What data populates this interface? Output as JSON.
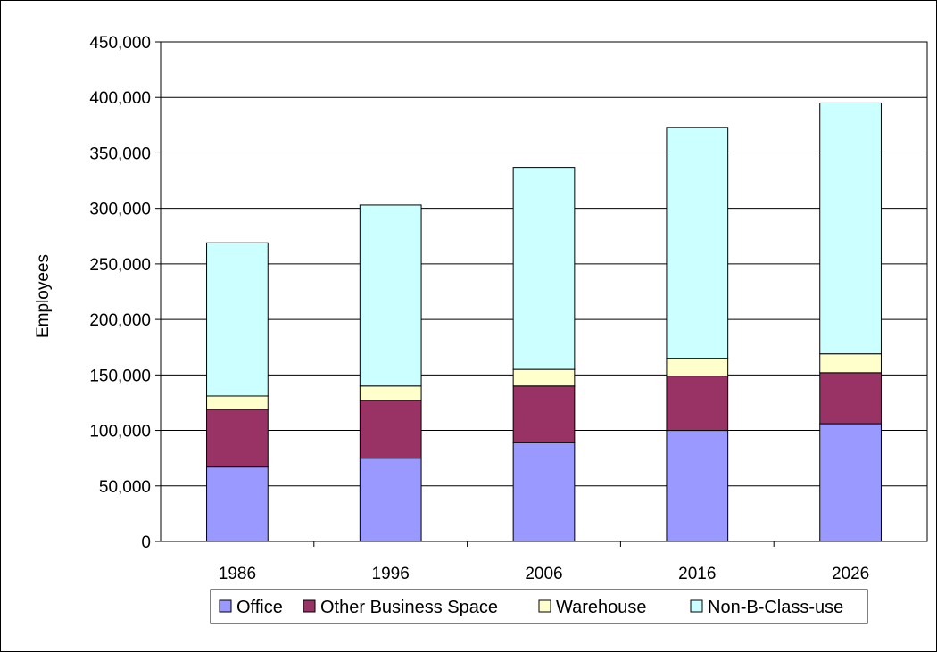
{
  "chart_data": {
    "type": "bar",
    "stacked": true,
    "categories": [
      "1986",
      "1996",
      "2006",
      "2016",
      "2026"
    ],
    "series": [
      {
        "name": "Office",
        "color": "#9999ff",
        "values": [
          67000,
          75000,
          89000,
          100000,
          106000
        ]
      },
      {
        "name": "Other Business Space",
        "color": "#993366",
        "values": [
          52000,
          52000,
          51000,
          49000,
          46000
        ]
      },
      {
        "name": "Warehouse",
        "color": "#ffffcc",
        "values": [
          12000,
          13000,
          15000,
          16000,
          17000
        ]
      },
      {
        "name": "Non-B-Class-use",
        "color": "#ccffff",
        "values": [
          138000,
          163000,
          182000,
          208000,
          226000
        ]
      }
    ],
    "ylabel": "Employees",
    "ylim": [
      0,
      450000
    ],
    "yticks": [
      "0",
      "50,000",
      "100,000",
      "150,000",
      "200,000",
      "250,000",
      "300,000",
      "350,000",
      "400,000",
      "450,000"
    ],
    "grid": true,
    "legend": "bottom"
  }
}
